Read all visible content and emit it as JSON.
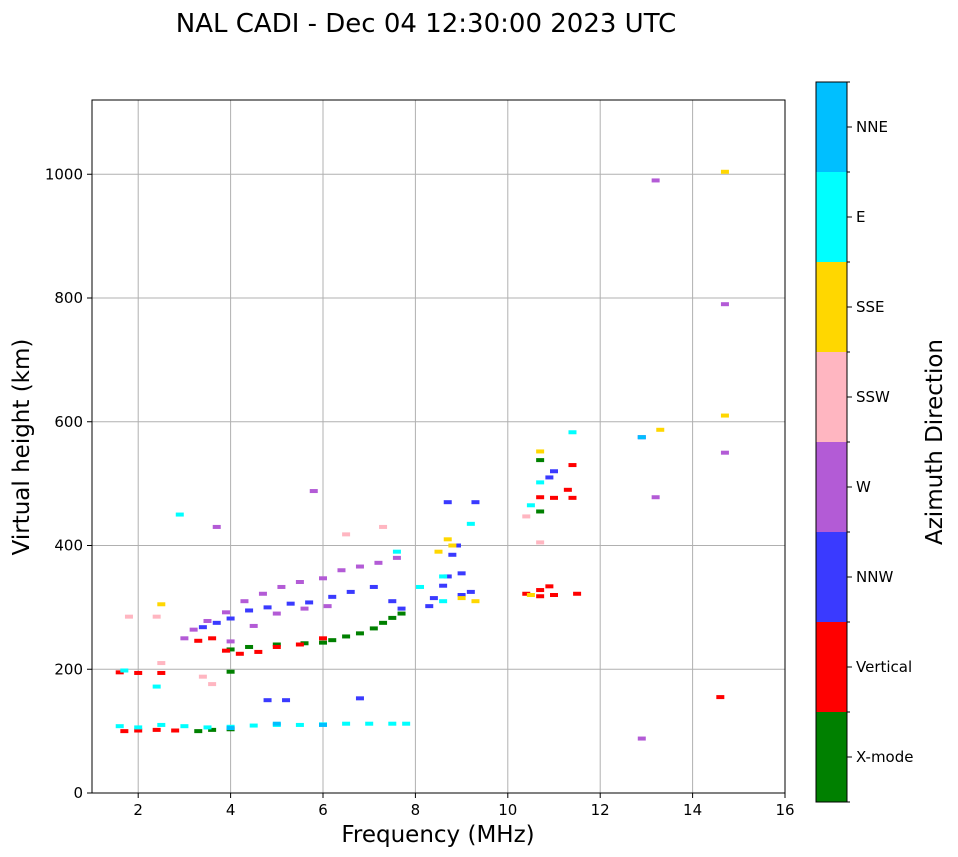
{
  "chart_data": {
    "type": "scatter",
    "title": "NAL CADI - Dec 04 12:30:00 2023 UTC",
    "xlabel": "Frequency (MHz)",
    "ylabel": "Virtual height (km)",
    "xlim": [
      1,
      16
    ],
    "ylim": [
      0,
      1120
    ],
    "xticks": [
      2,
      4,
      6,
      8,
      10,
      12,
      14,
      16
    ],
    "yticks": [
      0,
      200,
      400,
      600,
      800,
      1000
    ],
    "grid": true,
    "colorbar": {
      "title": "Azimuth Direction",
      "categories": [
        {
          "label": "X-mode",
          "color": "#008000"
        },
        {
          "label": "Vertical",
          "color": "#ff0000"
        },
        {
          "label": "NNW",
          "color": "#3a3aff"
        },
        {
          "label": "W",
          "color": "#b35bd6"
        },
        {
          "label": "SSW",
          "color": "#ffb6c1"
        },
        {
          "label": "SSE",
          "color": "#ffd700"
        },
        {
          "label": "E",
          "color": "#00ffff"
        },
        {
          "label": "NNE",
          "color": "#00bfff"
        }
      ]
    },
    "series": [
      {
        "name": "X-mode",
        "points": [
          [
            3.3,
            100
          ],
          [
            3.6,
            102
          ],
          [
            4.0,
            103
          ],
          [
            4.0,
            196
          ],
          [
            4.0,
            232
          ],
          [
            4.4,
            236
          ],
          [
            5.0,
            240
          ],
          [
            5.6,
            242
          ],
          [
            6.0,
            243
          ],
          [
            6.2,
            247
          ],
          [
            6.5,
            253
          ],
          [
            6.8,
            258
          ],
          [
            7.1,
            266
          ],
          [
            7.3,
            275
          ],
          [
            7.5,
            283
          ],
          [
            7.7,
            290
          ],
          [
            10.7,
            455
          ],
          [
            10.7,
            538
          ]
        ]
      },
      {
        "name": "Vertical",
        "points": [
          [
            1.7,
            100
          ],
          [
            2.0,
            101
          ],
          [
            2.4,
            102
          ],
          [
            2.8,
            101
          ],
          [
            1.6,
            195
          ],
          [
            2.0,
            194
          ],
          [
            2.5,
            194
          ],
          [
            3.3,
            246
          ],
          [
            3.6,
            250
          ],
          [
            3.9,
            230
          ],
          [
            4.2,
            225
          ],
          [
            4.6,
            228
          ],
          [
            5.0,
            236
          ],
          [
            5.5,
            240
          ],
          [
            6.0,
            250
          ],
          [
            10.4,
            322
          ],
          [
            10.7,
            318
          ],
          [
            10.7,
            328
          ],
          [
            10.9,
            334
          ],
          [
            11.0,
            320
          ],
          [
            11.5,
            322
          ],
          [
            10.7,
            478
          ],
          [
            11.0,
            477
          ],
          [
            11.3,
            490
          ],
          [
            11.4,
            477
          ],
          [
            11.4,
            530
          ],
          [
            14.6,
            155
          ]
        ]
      },
      {
        "name": "NNW",
        "points": [
          [
            4.8,
            150
          ],
          [
            5.2,
            150
          ],
          [
            6.8,
            153
          ],
          [
            3.4,
            268
          ],
          [
            3.7,
            275
          ],
          [
            4.0,
            282
          ],
          [
            4.4,
            295
          ],
          [
            4.8,
            300
          ],
          [
            5.3,
            306
          ],
          [
            5.7,
            308
          ],
          [
            6.2,
            317
          ],
          [
            6.6,
            325
          ],
          [
            7.1,
            333
          ],
          [
            7.5,
            310
          ],
          [
            7.7,
            298
          ],
          [
            8.3,
            302
          ],
          [
            8.4,
            315
          ],
          [
            8.6,
            335
          ],
          [
            8.7,
            350
          ],
          [
            8.8,
            385
          ],
          [
            8.9,
            400
          ],
          [
            9.0,
            320
          ],
          [
            9.0,
            355
          ],
          [
            9.2,
            325
          ],
          [
            8.7,
            470
          ],
          [
            9.3,
            470
          ],
          [
            10.9,
            510
          ],
          [
            11.0,
            520
          ],
          [
            12.9,
            575
          ]
        ]
      },
      {
        "name": "W",
        "points": [
          [
            3.0,
            250
          ],
          [
            3.2,
            264
          ],
          [
            3.5,
            278
          ],
          [
            3.9,
            292
          ],
          [
            4.3,
            310
          ],
          [
            4.7,
            322
          ],
          [
            5.1,
            333
          ],
          [
            5.5,
            341
          ],
          [
            6.0,
            347
          ],
          [
            6.4,
            360
          ],
          [
            6.8,
            366
          ],
          [
            7.2,
            372
          ],
          [
            7.6,
            380
          ],
          [
            4.0,
            245
          ],
          [
            4.5,
            270
          ],
          [
            5.0,
            290
          ],
          [
            5.6,
            298
          ],
          [
            6.1,
            302
          ],
          [
            3.7,
            430
          ],
          [
            5.8,
            488
          ],
          [
            13.2,
            990
          ],
          [
            14.7,
            790
          ],
          [
            13.2,
            478
          ],
          [
            14.7,
            550
          ],
          [
            12.9,
            88
          ]
        ]
      },
      {
        "name": "SSW",
        "points": [
          [
            1.8,
            285
          ],
          [
            2.4,
            285
          ],
          [
            2.5,
            210
          ],
          [
            3.4,
            188
          ],
          [
            3.6,
            176
          ],
          [
            6.5,
            418
          ],
          [
            7.3,
            430
          ],
          [
            10.4,
            447
          ],
          [
            10.7,
            405
          ]
        ]
      },
      {
        "name": "SSE",
        "points": [
          [
            2.5,
            305
          ],
          [
            8.5,
            390
          ],
          [
            8.7,
            410
          ],
          [
            8.8,
            400
          ],
          [
            9.0,
            315
          ],
          [
            9.3,
            310
          ],
          [
            10.5,
            320
          ],
          [
            10.7,
            552
          ],
          [
            13.3,
            587
          ],
          [
            14.7,
            610
          ],
          [
            14.7,
            1004
          ]
        ]
      },
      {
        "name": "E",
        "points": [
          [
            1.6,
            108
          ],
          [
            2.0,
            106
          ],
          [
            2.5,
            110
          ],
          [
            3.0,
            108
          ],
          [
            3.5,
            106
          ],
          [
            4.0,
            107
          ],
          [
            4.5,
            109
          ],
          [
            5.0,
            110
          ],
          [
            5.5,
            110
          ],
          [
            6.0,
            111
          ],
          [
            6.5,
            112
          ],
          [
            7.0,
            112
          ],
          [
            7.5,
            112
          ],
          [
            7.8,
            112
          ],
          [
            1.7,
            198
          ],
          [
            2.4,
            172
          ],
          [
            2.9,
            450
          ],
          [
            7.6,
            390
          ],
          [
            8.1,
            333
          ],
          [
            8.6,
            310
          ],
          [
            8.6,
            350
          ],
          [
            9.2,
            435
          ],
          [
            10.5,
            465
          ],
          [
            10.7,
            502
          ],
          [
            11.4,
            583
          ]
        ]
      },
      {
        "name": "NNE",
        "points": [
          [
            4.0,
            105
          ],
          [
            5.0,
            112
          ],
          [
            6.0,
            110
          ],
          [
            12.9,
            575
          ]
        ]
      }
    ]
  }
}
